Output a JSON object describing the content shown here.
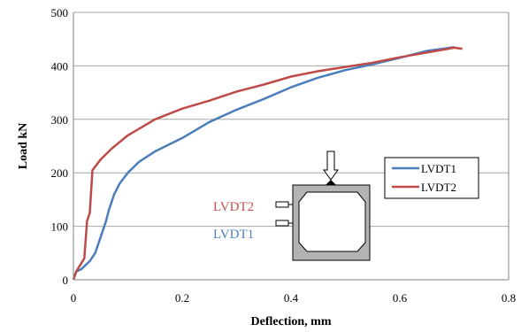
{
  "chart_data": {
    "type": "line",
    "xlabel": "Deflection, mm",
    "ylabel": "Load kN",
    "xlim": [
      0,
      0.8
    ],
    "ylim": [
      0,
      500
    ],
    "x_ticks": [
      "0",
      "0.2",
      "0.4",
      "0.6",
      "0.8"
    ],
    "y_ticks": [
      "0",
      "100",
      "200",
      "300",
      "400",
      "500"
    ],
    "grid": "horizontal",
    "legend_position": "right",
    "series": [
      {
        "name": "LVDT1",
        "color": "#4a7ebb",
        "points": [
          [
            0.0,
            0
          ],
          [
            0.005,
            15
          ],
          [
            0.015,
            20
          ],
          [
            0.03,
            35
          ],
          [
            0.04,
            50
          ],
          [
            0.05,
            80
          ],
          [
            0.06,
            110
          ],
          [
            0.065,
            130
          ],
          [
            0.075,
            160
          ],
          [
            0.085,
            180
          ],
          [
            0.1,
            200
          ],
          [
            0.12,
            220
          ],
          [
            0.15,
            240
          ],
          [
            0.2,
            265
          ],
          [
            0.25,
            295
          ],
          [
            0.3,
            318
          ],
          [
            0.35,
            338
          ],
          [
            0.4,
            360
          ],
          [
            0.45,
            378
          ],
          [
            0.5,
            392
          ],
          [
            0.55,
            403
          ],
          [
            0.6,
            415
          ],
          [
            0.65,
            428
          ],
          [
            0.7,
            435
          ]
        ]
      },
      {
        "name": "LVDT2",
        "color": "#be4b48",
        "points": [
          [
            0.0,
            0
          ],
          [
            0.005,
            15
          ],
          [
            0.02,
            40
          ],
          [
            0.025,
            110
          ],
          [
            0.03,
            125
          ],
          [
            0.035,
            205
          ],
          [
            0.05,
            225
          ],
          [
            0.07,
            245
          ],
          [
            0.1,
            270
          ],
          [
            0.15,
            300
          ],
          [
            0.2,
            320
          ],
          [
            0.25,
            335
          ],
          [
            0.3,
            352
          ],
          [
            0.35,
            365
          ],
          [
            0.4,
            380
          ],
          [
            0.45,
            390
          ],
          [
            0.5,
            398
          ],
          [
            0.55,
            406
          ],
          [
            0.6,
            416
          ],
          [
            0.65,
            425
          ],
          [
            0.7,
            434
          ],
          [
            0.715,
            432
          ]
        ]
      }
    ],
    "annotations": {
      "lvdt2_label": "LVDT2",
      "lvdt1_label": "LVDT1"
    }
  }
}
